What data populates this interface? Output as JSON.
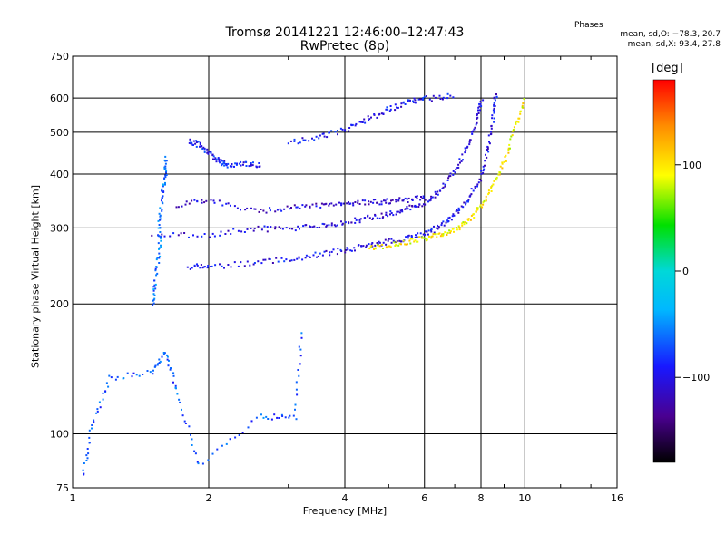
{
  "header": {
    "title_line1": "Tromsø 20141221 12:46:00–12:47:43",
    "title_line2": "RwPretec (8p)",
    "phases_heading": "Phases",
    "phases_o": "mean, sd,O: −78.3, 20.7",
    "phases_x": "mean, sd,X:  93.4, 27.8"
  },
  "colorbar": {
    "unit": "[deg]",
    "range": [
      -180,
      180
    ],
    "tick_labels": [
      "100",
      "0",
      "−100"
    ],
    "tick_values": [
      100,
      0,
      -100
    ]
  },
  "chart_data": {
    "type": "scatter",
    "title": "Tromsø 20141221 12:46:00–12:47:43",
    "subtitle": "RwPretec (8p)",
    "xlabel": "Frequency [MHz]",
    "ylabel": "Stationary phase Virtual Height [km]",
    "x_scale": "log",
    "y_scale": "log",
    "xlim": [
      1,
      16
    ],
    "ylim": [
      75,
      750
    ],
    "grid": true,
    "x_ticks": [
      1,
      2,
      4,
      6,
      8,
      10,
      16
    ],
    "x_tick_labels": [
      "1",
      "2",
      "4",
      "6",
      "8",
      "10",
      "16"
    ],
    "y_ticks": [
      75,
      100,
      200,
      300,
      400,
      500,
      600,
      750
    ],
    "y_tick_labels": [
      "75",
      "100",
      "200",
      "300",
      "400",
      "500",
      "600",
      "750"
    ],
    "color_by": "phase [deg]",
    "traces": [
      {
        "desc": "O-mode main F trace",
        "phase": -100,
        "points": [
          [
            1.8,
            245
          ],
          [
            2.0,
            245
          ],
          [
            2.5,
            250
          ],
          [
            3.0,
            255
          ],
          [
            3.5,
            262
          ],
          [
            4.0,
            268
          ],
          [
            4.5,
            275
          ],
          [
            5.0,
            280
          ],
          [
            5.5,
            286
          ],
          [
            6.0,
            292
          ],
          [
            6.5,
            305
          ],
          [
            7.0,
            325
          ],
          [
            7.5,
            355
          ],
          [
            8.0,
            400
          ],
          [
            8.3,
            470
          ],
          [
            8.5,
            560
          ],
          [
            8.6,
            620
          ]
        ]
      },
      {
        "desc": "O-mode second hop",
        "phase": -105,
        "points": [
          [
            1.5,
            290
          ],
          [
            2.0,
            290
          ],
          [
            2.5,
            300
          ],
          [
            3.0,
            300
          ],
          [
            3.5,
            305
          ],
          [
            4.0,
            310
          ],
          [
            4.5,
            318
          ],
          [
            5.0,
            325
          ],
          [
            5.5,
            335
          ],
          [
            6.0,
            345
          ],
          [
            6.5,
            370
          ],
          [
            7.0,
            410
          ],
          [
            7.5,
            470
          ],
          [
            7.8,
            540
          ],
          [
            8.0,
            600
          ]
        ]
      },
      {
        "desc": "O-mode upper echo",
        "phase": -110,
        "points": [
          [
            1.7,
            340
          ],
          [
            2.0,
            350
          ],
          [
            2.5,
            330
          ],
          [
            3.0,
            335
          ],
          [
            3.5,
            340
          ],
          [
            4.0,
            342
          ],
          [
            4.5,
            345
          ],
          [
            5.0,
            348
          ],
          [
            5.5,
            350
          ],
          [
            6.0,
            355
          ]
        ]
      },
      {
        "desc": "X-mode trace",
        "phase": 95,
        "points": [
          [
            4.5,
            270
          ],
          [
            5.0,
            275
          ],
          [
            5.5,
            280
          ],
          [
            6.0,
            285
          ],
          [
            6.5,
            290
          ],
          [
            7.0,
            300
          ],
          [
            7.5,
            315
          ],
          [
            8.0,
            340
          ],
          [
            8.5,
            380
          ],
          [
            9.0,
            430
          ],
          [
            9.5,
            520
          ],
          [
            10.0,
            600
          ]
        ]
      },
      {
        "desc": "Upper layer echoes",
        "phase": -95,
        "points": [
          [
            3.0,
            475
          ],
          [
            3.5,
            490
          ],
          [
            4.0,
            510
          ],
          [
            4.5,
            540
          ],
          [
            5.0,
            570
          ],
          [
            5.5,
            590
          ],
          [
            6.0,
            600
          ],
          [
            7.0,
            610
          ]
        ]
      },
      {
        "desc": "Vertical spread near 1.5 MHz",
        "phase": -60,
        "points": [
          [
            1.5,
            200
          ],
          [
            1.52,
            230
          ],
          [
            1.55,
            270
          ],
          [
            1.55,
            310
          ],
          [
            1.57,
            360
          ],
          [
            1.6,
            400
          ],
          [
            1.6,
            440
          ]
        ]
      },
      {
        "desc": "Echo cluster 1.8-2.2 MHz",
        "phase": -90,
        "points": [
          [
            1.8,
            480
          ],
          [
            1.9,
            470
          ],
          [
            2.0,
            450
          ],
          [
            2.1,
            430
          ],
          [
            2.2,
            420
          ],
          [
            2.4,
            425
          ],
          [
            2.6,
            420
          ]
        ]
      },
      {
        "desc": "Low echoes",
        "phase": -70,
        "points": [
          [
            1.05,
            80
          ],
          [
            1.1,
            105
          ],
          [
            1.2,
            135
          ],
          [
            1.5,
            140
          ],
          [
            1.6,
            155
          ],
          [
            1.7,
            125
          ],
          [
            1.9,
            85
          ],
          [
            2.6,
            110
          ],
          [
            3.1,
            110
          ],
          [
            3.2,
            180
          ]
        ]
      }
    ]
  }
}
